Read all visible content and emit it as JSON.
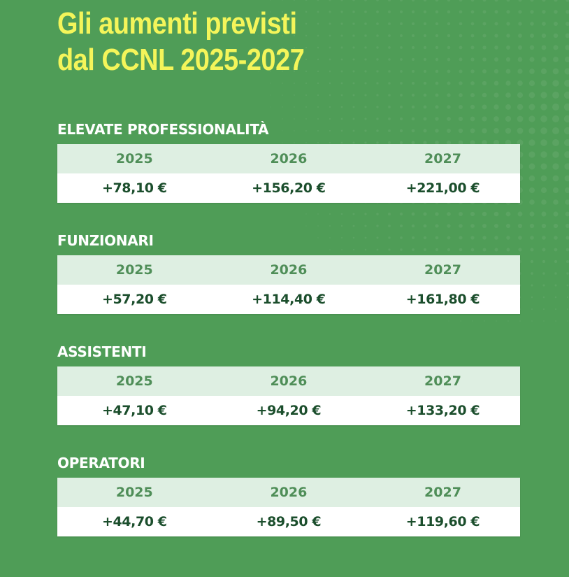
{
  "colors": {
    "background": "#4f9d57",
    "title": "#f4f55a",
    "header_row": "#deefe2",
    "header_text": "#4f8e58",
    "value_text": "#1b4e2c"
  },
  "title": {
    "line1": "Gli aumenti previsti",
    "line2": "dal CCNL 2025-2027"
  },
  "sections": [
    {
      "label": "ELEVATE PROFESSIONALITÀ",
      "years": [
        "2025",
        "2026",
        "2027"
      ],
      "values": [
        "+78,10 €",
        "+156,20 €",
        "+221,00 €"
      ]
    },
    {
      "label": "FUNZIONARI",
      "years": [
        "2025",
        "2026",
        "2027"
      ],
      "values": [
        "+57,20 €",
        "+114,40 €",
        "+161,80 €"
      ]
    },
    {
      "label": "ASSISTENTI",
      "years": [
        "2025",
        "2026",
        "2027"
      ],
      "values": [
        "+47,10 €",
        "+94,20 €",
        "+133,20 €"
      ]
    },
    {
      "label": "OPERATORI",
      "years": [
        "2025",
        "2026",
        "2027"
      ],
      "values": [
        "+44,70 €",
        "+89,50 €",
        "+119,60 €"
      ]
    }
  ]
}
